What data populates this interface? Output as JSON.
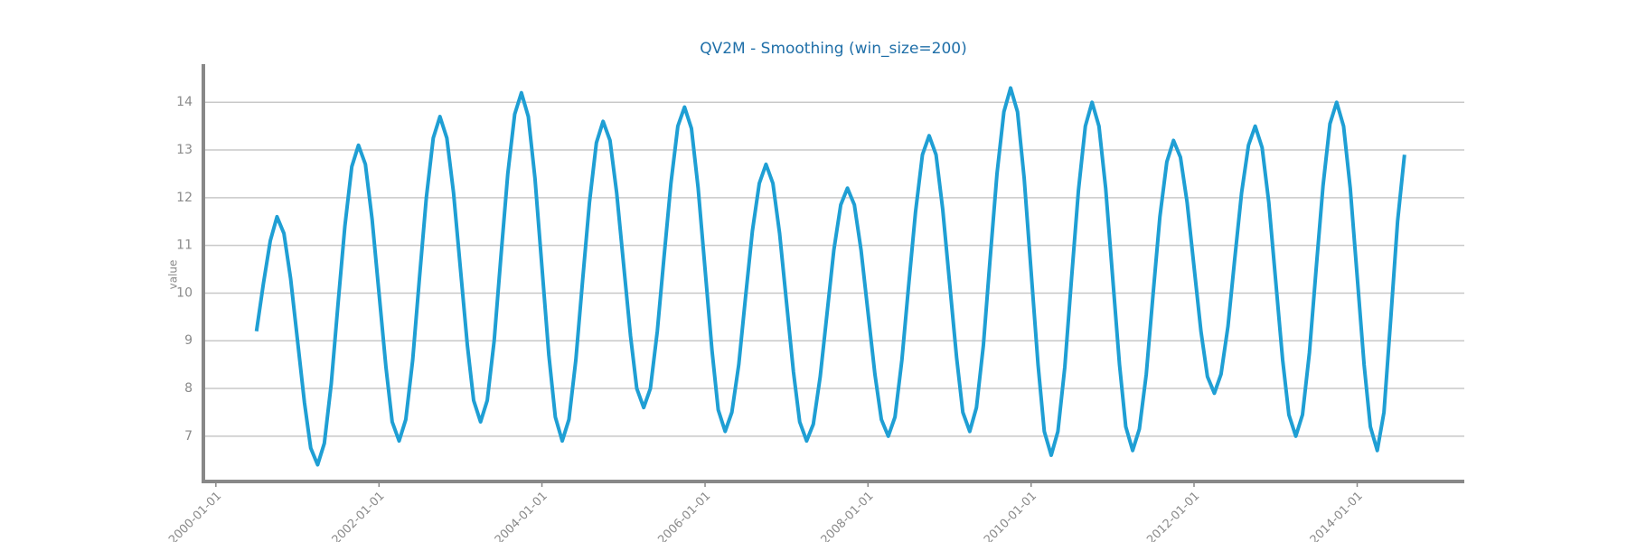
{
  "chart_data": {
    "type": "line",
    "title": "QV2M - Smoothing (win_size=200)",
    "y_label": "value",
    "color": "#1f9fd4",
    "grid": true,
    "x": [
      "2000-07-01",
      "2000-08-01",
      "2000-09-01",
      "2000-10-01",
      "2000-11-01",
      "2000-12-01",
      "2001-01-01",
      "2001-02-01",
      "2001-03-01",
      "2001-04-01",
      "2001-05-01",
      "2001-06-01",
      "2001-07-01",
      "2001-08-01",
      "2001-09-01",
      "2001-10-01",
      "2001-11-01",
      "2001-12-01",
      "2002-01-01",
      "2002-02-01",
      "2002-03-01",
      "2002-04-01",
      "2002-05-01",
      "2002-06-01",
      "2002-07-01",
      "2002-08-01",
      "2002-09-01",
      "2002-10-01",
      "2002-11-01",
      "2002-12-01",
      "2003-01-01",
      "2003-02-01",
      "2003-03-01",
      "2003-04-01",
      "2003-05-01",
      "2003-06-01",
      "2003-07-01",
      "2003-08-01",
      "2003-09-01",
      "2003-10-01",
      "2003-11-01",
      "2003-12-01",
      "2004-01-01",
      "2004-02-01",
      "2004-03-01",
      "2004-04-01",
      "2004-05-01",
      "2004-06-01",
      "2004-07-01",
      "2004-08-01",
      "2004-09-01",
      "2004-10-01",
      "2004-11-01",
      "2004-12-01",
      "2005-01-01",
      "2005-02-01",
      "2005-03-01",
      "2005-04-01",
      "2005-05-01",
      "2005-06-01",
      "2005-07-01",
      "2005-08-01",
      "2005-09-01",
      "2005-10-01",
      "2005-11-01",
      "2005-12-01",
      "2006-01-01",
      "2006-02-01",
      "2006-03-01",
      "2006-04-01",
      "2006-05-01",
      "2006-06-01",
      "2006-07-01",
      "2006-08-01",
      "2006-09-01",
      "2006-10-01",
      "2006-11-01",
      "2006-12-01",
      "2007-01-01",
      "2007-02-01",
      "2007-03-01",
      "2007-04-01",
      "2007-05-01",
      "2007-06-01",
      "2007-07-01",
      "2007-08-01",
      "2007-09-01",
      "2007-10-01",
      "2007-11-01",
      "2007-12-01",
      "2008-01-01",
      "2008-02-01",
      "2008-03-01",
      "2008-04-01",
      "2008-05-01",
      "2008-06-01",
      "2008-07-01",
      "2008-08-01",
      "2008-09-01",
      "2008-10-01",
      "2008-11-01",
      "2008-12-01",
      "2009-01-01",
      "2009-02-01",
      "2009-03-01",
      "2009-04-01",
      "2009-05-01",
      "2009-06-01",
      "2009-07-01",
      "2009-08-01",
      "2009-09-01",
      "2009-10-01",
      "2009-11-01",
      "2009-12-01",
      "2010-01-01",
      "2010-02-01",
      "2010-03-01",
      "2010-04-01",
      "2010-05-01",
      "2010-06-01",
      "2010-07-01",
      "2010-08-01",
      "2010-09-01",
      "2010-10-01",
      "2010-11-01",
      "2010-12-01",
      "2011-01-01",
      "2011-02-01",
      "2011-03-01",
      "2011-04-01",
      "2011-05-01",
      "2011-06-01",
      "2011-07-01",
      "2011-08-01",
      "2011-09-01",
      "2011-10-01",
      "2011-11-01",
      "2011-12-01",
      "2012-01-01",
      "2012-02-01",
      "2012-03-01",
      "2012-04-01",
      "2012-05-01",
      "2012-06-01",
      "2012-07-01",
      "2012-08-01",
      "2012-09-01",
      "2012-10-01",
      "2012-11-01",
      "2012-12-01",
      "2013-01-01",
      "2013-02-01",
      "2013-03-01",
      "2013-04-01",
      "2013-05-01",
      "2013-06-01",
      "2013-07-01",
      "2013-08-01",
      "2013-09-01",
      "2013-10-01",
      "2013-11-01",
      "2013-12-01",
      "2014-01-01",
      "2014-02-01",
      "2014-03-01",
      "2014-04-01",
      "2014-05-01",
      "2014-06-01",
      "2014-07-01",
      "2014-08-01"
    ],
    "values": [
      9.2,
      10.2,
      11.1,
      11.6,
      11.25,
      10.3,
      9.0,
      7.7,
      6.75,
      6.4,
      6.85,
      8.1,
      9.75,
      11.4,
      12.65,
      13.1,
      12.7,
      11.55,
      10.0,
      8.45,
      7.3,
      6.9,
      7.35,
      8.6,
      10.3,
      12.0,
      13.25,
      13.7,
      13.25,
      12.1,
      10.5,
      8.9,
      7.75,
      7.3,
      7.75,
      9.0,
      10.75,
      12.5,
      13.75,
      14.2,
      13.7,
      12.4,
      10.55,
      8.7,
      7.4,
      6.9,
      7.35,
      8.6,
      10.25,
      11.9,
      13.15,
      13.6,
      13.2,
      12.1,
      10.6,
      9.1,
      8.0,
      7.6,
      8.0,
      9.2,
      10.75,
      12.3,
      13.5,
      13.9,
      13.45,
      12.2,
      10.5,
      8.8,
      7.55,
      7.1,
      7.5,
      8.5,
      9.9,
      11.3,
      12.3,
      12.7,
      12.3,
      11.25,
      9.8,
      8.35,
      7.3,
      6.9,
      7.25,
      8.25,
      9.55,
      10.9,
      11.85,
      12.2,
      11.85,
      10.9,
      9.6,
      8.3,
      7.35,
      7.0,
      7.4,
      8.6,
      10.15,
      11.7,
      12.9,
      13.3,
      12.9,
      11.75,
      10.2,
      8.65,
      7.5,
      7.1,
      7.6,
      8.9,
      10.7,
      12.5,
      13.8,
      14.3,
      13.8,
      12.4,
      10.45,
      8.5,
      7.1,
      6.6,
      7.1,
      8.45,
      10.3,
      12.15,
      13.5,
      14.0,
      13.5,
      12.2,
      10.35,
      8.5,
      7.2,
      6.7,
      7.15,
      8.3,
      9.95,
      11.6,
      12.75,
      13.2,
      12.85,
      11.9,
      10.55,
      9.2,
      8.25,
      7.9,
      8.3,
      9.3,
      10.7,
      12.1,
      13.1,
      13.5,
      13.05,
      11.9,
      10.25,
      8.6,
      7.45,
      7.0,
      7.45,
      8.75,
      10.5,
      12.25,
      13.55,
      14.0,
      13.5,
      12.2,
      10.35,
      8.5,
      7.2,
      6.7,
      7.5,
      9.5,
      11.5,
      12.9
    ],
    "xlim": [
      "1999-11-06",
      "2015-04-26"
    ],
    "xticks": [
      "2000-01-01",
      "2002-01-01",
      "2004-01-01",
      "2006-01-01",
      "2008-01-01",
      "2010-01-01",
      "2012-01-01",
      "2014-01-01"
    ],
    "ylim": [
      6.05,
      14.8
    ],
    "yticks": [
      7,
      8,
      9,
      10,
      11,
      12,
      13,
      14
    ]
  }
}
